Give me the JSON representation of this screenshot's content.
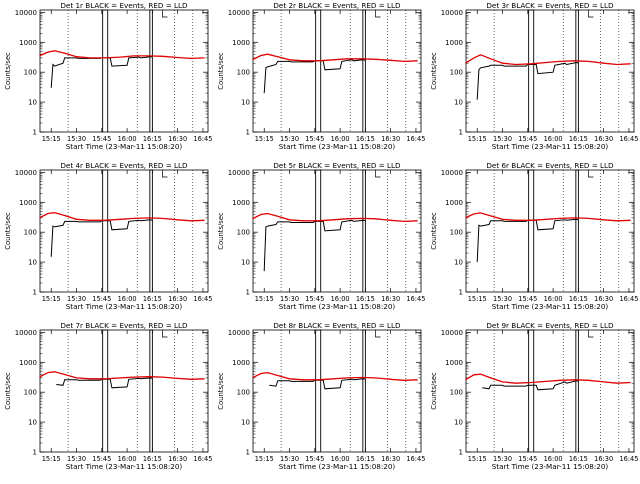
{
  "colors": {
    "events": "#000000",
    "lld": "#e00000",
    "axes": "#000000",
    "background": "#ffffff"
  },
  "chart_data": [
    {
      "type": "line",
      "title": "Det 1r BLACK = Events, RED = LLD",
      "xlabel": "Start Time (23-Mar-11 15:08:20)",
      "ylabel": "Counts/sec",
      "x_ticks": [
        "15:15",
        "15:30",
        "15:45",
        "16:00",
        "16:15",
        "16:30",
        "16:45"
      ],
      "y_ticks": [
        "1",
        "10",
        "100",
        "1000",
        "10000"
      ],
      "yscale": "log",
      "ylim": [
        1,
        12000
      ],
      "series": [
        {
          "color": "#000000",
          "x": [
            "15:15",
            "15:16",
            "15:17",
            "15:22",
            "15:23",
            "15:30",
            "15:31",
            "15:44",
            "15:45",
            "15:50",
            "15:51",
            "16:00",
            "16:01",
            "16:07",
            "16:08",
            "16:14",
            "16:15"
          ],
          "values": [
            30,
            180,
            160,
            200,
            300,
            300,
            290,
            290,
            300,
            300,
            160,
            170,
            300,
            320,
            300,
            330,
            320
          ]
        },
        {
          "color": "#e00000",
          "x": [
            "15:08",
            "15:13",
            "15:17",
            "15:23",
            "15:30",
            "15:38",
            "15:47",
            "15:56",
            "16:04",
            "16:13",
            "16:21",
            "16:30",
            "16:38",
            "16:46"
          ],
          "values": [
            350,
            470,
            520,
            430,
            330,
            300,
            300,
            320,
            350,
            350,
            340,
            310,
            290,
            300
          ]
        }
      ]
    },
    {
      "type": "line",
      "title": "Det 2r BLACK = Events, RED = LLD",
      "xlabel": "Start Time (23-Mar-11 15:08:20)",
      "ylabel": "Counts/sec",
      "x_ticks": [
        "15:15",
        "15:30",
        "15:45",
        "16:00",
        "16:15",
        "16:30",
        "16:45"
      ],
      "y_ticks": [
        "1",
        "10",
        "100",
        "1000",
        "10000"
      ],
      "yscale": "log",
      "ylim": [
        1,
        12000
      ],
      "series": [
        {
          "color": "#000000",
          "x": [
            "15:15",
            "15:16",
            "15:17",
            "15:22",
            "15:23",
            "15:30",
            "15:31",
            "15:44",
            "15:45",
            "15:50",
            "15:51",
            "16:00",
            "16:01",
            "16:07",
            "16:08",
            "16:14",
            "16:15"
          ],
          "values": [
            20,
            140,
            150,
            180,
            230,
            230,
            220,
            220,
            240,
            240,
            120,
            130,
            230,
            260,
            240,
            260,
            250
          ]
        },
        {
          "color": "#e00000",
          "x": [
            "15:08",
            "15:13",
            "15:17",
            "15:23",
            "15:30",
            "15:38",
            "15:47",
            "15:56",
            "16:04",
            "16:13",
            "16:21",
            "16:30",
            "16:38",
            "16:46"
          ],
          "values": [
            260,
            360,
            400,
            330,
            260,
            240,
            240,
            260,
            280,
            280,
            270,
            250,
            230,
            240
          ]
        }
      ]
    },
    {
      "type": "line",
      "title": "Det 3r BLACK = Events, RED = LLD",
      "xlabel": "Start Time (23-Mar-11 15:08:20)",
      "ylabel": "Counts/sec",
      "x_ticks": [
        "15:15",
        "15:30",
        "15:45",
        "16:00",
        "16:15",
        "16:30",
        "16:45"
      ],
      "y_ticks": [
        "1",
        "10",
        "100",
        "1000",
        "10000"
      ],
      "yscale": "log",
      "ylim": [
        1,
        12000
      ],
      "series": [
        {
          "color": "#000000",
          "x": [
            "15:15",
            "15:16",
            "15:17",
            "15:22",
            "15:23",
            "15:30",
            "15:31",
            "15:44",
            "15:45",
            "15:50",
            "15:51",
            "16:00",
            "16:01",
            "16:07",
            "16:08",
            "16:14",
            "16:15"
          ],
          "values": [
            12,
            120,
            140,
            160,
            170,
            170,
            160,
            160,
            180,
            180,
            90,
            100,
            170,
            200,
            180,
            210,
            200
          ]
        },
        {
          "color": "#e00000",
          "x": [
            "15:08",
            "15:13",
            "15:17",
            "15:23",
            "15:30",
            "15:38",
            "15:47",
            "15:56",
            "16:04",
            "16:13",
            "16:21",
            "16:30",
            "16:38",
            "16:46"
          ],
          "values": [
            200,
            300,
            380,
            280,
            200,
            180,
            190,
            210,
            230,
            240,
            230,
            200,
            180,
            190
          ]
        }
      ]
    },
    {
      "type": "line",
      "title": "Det 4r BLACK = Events, RED = LLD",
      "xlabel": "Start Time (23-Mar-11 15:08:20)",
      "ylabel": "Counts/sec",
      "x_ticks": [
        "15:15",
        "15:30",
        "15:45",
        "16:00",
        "16:15",
        "16:30",
        "16:45"
      ],
      "y_ticks": [
        "1",
        "10",
        "100",
        "1000",
        "10000"
      ],
      "yscale": "log",
      "ylim": [
        1,
        12000
      ],
      "series": [
        {
          "color": "#000000",
          "x": [
            "15:15",
            "15:16",
            "15:17",
            "15:22",
            "15:23",
            "15:30",
            "15:31",
            "15:44",
            "15:45",
            "15:50",
            "15:51",
            "16:00",
            "16:01",
            "16:07",
            "16:08",
            "16:14",
            "16:15"
          ],
          "values": [
            15,
            160,
            150,
            170,
            230,
            230,
            220,
            220,
            240,
            240,
            120,
            130,
            230,
            250,
            240,
            260,
            250
          ]
        },
        {
          "color": "#e00000",
          "x": [
            "15:08",
            "15:13",
            "15:17",
            "15:23",
            "15:30",
            "15:38",
            "15:47",
            "15:56",
            "16:04",
            "16:13",
            "16:21",
            "16:30",
            "16:38",
            "16:46"
          ],
          "values": [
            300,
            420,
            450,
            360,
            270,
            250,
            250,
            270,
            290,
            300,
            290,
            260,
            240,
            250
          ]
        }
      ]
    },
    {
      "type": "line",
      "title": "Det 5r BLACK = Events, RED = LLD",
      "xlabel": "Start Time (23-Mar-11 15:08:20)",
      "ylabel": "Counts/sec",
      "x_ticks": [
        "15:15",
        "15:30",
        "15:45",
        "16:00",
        "16:15",
        "16:30",
        "16:45"
      ],
      "y_ticks": [
        "1",
        "10",
        "100",
        "1000",
        "10000"
      ],
      "yscale": "log",
      "ylim": [
        1,
        12000
      ],
      "series": [
        {
          "color": "#000000",
          "x": [
            "15:15",
            "15:16",
            "15:17",
            "15:22",
            "15:23",
            "15:30",
            "15:31",
            "15:44",
            "15:45",
            "15:50",
            "15:51",
            "16:00",
            "16:01",
            "16:07",
            "16:08",
            "16:14",
            "16:15"
          ],
          "values": [
            5,
            150,
            160,
            180,
            220,
            220,
            210,
            210,
            230,
            230,
            110,
            120,
            220,
            250,
            230,
            250,
            240
          ]
        },
        {
          "color": "#e00000",
          "x": [
            "15:08",
            "15:13",
            "15:17",
            "15:23",
            "15:30",
            "15:38",
            "15:47",
            "15:56",
            "16:04",
            "16:13",
            "16:21",
            "16:30",
            "16:38",
            "16:46"
          ],
          "values": [
            280,
            390,
            420,
            340,
            260,
            240,
            240,
            260,
            280,
            290,
            280,
            250,
            230,
            240
          ]
        }
      ]
    },
    {
      "type": "line",
      "title": "Det 6r BLACK = Events, RED = LLD",
      "xlabel": "Start Time (23-Mar-11 15:08:20)",
      "ylabel": "Counts/sec",
      "x_ticks": [
        "15:15",
        "15:30",
        "15:45",
        "16:00",
        "16:15",
        "16:30",
        "16:45"
      ],
      "y_ticks": [
        "1",
        "10",
        "100",
        "1000",
        "10000"
      ],
      "yscale": "log",
      "ylim": [
        1,
        12000
      ],
      "series": [
        {
          "color": "#000000",
          "x": [
            "15:15",
            "15:16",
            "15:17",
            "15:22",
            "15:23",
            "15:30",
            "15:31",
            "15:44",
            "15:45",
            "15:50",
            "15:51",
            "16:00",
            "16:01",
            "16:07",
            "16:08",
            "16:14",
            "16:15"
          ],
          "values": [
            10,
            170,
            160,
            180,
            240,
            240,
            230,
            230,
            250,
            250,
            120,
            130,
            240,
            260,
            250,
            270,
            260
          ]
        },
        {
          "color": "#e00000",
          "x": [
            "15:08",
            "15:13",
            "15:17",
            "15:23",
            "15:30",
            "15:38",
            "15:47",
            "15:56",
            "16:04",
            "16:13",
            "16:21",
            "16:30",
            "16:38",
            "16:46"
          ],
          "values": [
            300,
            410,
            440,
            350,
            270,
            250,
            250,
            270,
            290,
            300,
            290,
            260,
            240,
            250
          ]
        }
      ]
    },
    {
      "type": "line",
      "title": "Det 7r BLACK = Events, RED = LLD",
      "xlabel": "Start Time (23-Mar-11 15:08:20)",
      "ylabel": "Counts/sec",
      "x_ticks": [
        "15:15",
        "15:30",
        "15:45",
        "16:00",
        "16:15",
        "16:30",
        "16:45"
      ],
      "y_ticks": [
        "1",
        "10",
        "100",
        "1000",
        "10000"
      ],
      "yscale": "log",
      "ylim": [
        1,
        12000
      ],
      "series": [
        {
          "color": "#000000",
          "x": [
            "15:18",
            "15:22",
            "15:23",
            "15:30",
            "15:31",
            "15:44",
            "15:45",
            "15:50",
            "15:51",
            "16:00",
            "16:01",
            "16:07",
            "16:08",
            "16:14",
            "16:15"
          ],
          "values": [
            180,
            170,
            260,
            260,
            250,
            250,
            270,
            270,
            140,
            150,
            270,
            290,
            280,
            300,
            290
          ]
        },
        {
          "color": "#e00000",
          "x": [
            "15:08",
            "15:13",
            "15:17",
            "15:23",
            "15:30",
            "15:38",
            "15:47",
            "15:56",
            "16:04",
            "16:13",
            "16:21",
            "16:30",
            "16:38",
            "16:46"
          ],
          "values": [
            320,
            450,
            480,
            390,
            300,
            280,
            280,
            300,
            320,
            330,
            320,
            290,
            270,
            280
          ]
        }
      ]
    },
    {
      "type": "line",
      "title": "Det 8r BLACK = Events, RED = LLD",
      "xlabel": "Start Time (23-Mar-11 15:08:20)",
      "ylabel": "Counts/sec",
      "x_ticks": [
        "15:15",
        "15:30",
        "15:45",
        "16:00",
        "16:15",
        "16:30",
        "16:45"
      ],
      "y_ticks": [
        "1",
        "10",
        "100",
        "1000",
        "10000"
      ],
      "yscale": "log",
      "ylim": [
        1,
        12000
      ],
      "series": [
        {
          "color": "#000000",
          "x": [
            "15:18",
            "15:22",
            "15:23",
            "15:30",
            "15:31",
            "15:44",
            "15:45",
            "15:50",
            "15:51",
            "16:00",
            "16:01",
            "16:07",
            "16:08",
            "16:14",
            "16:15"
          ],
          "values": [
            170,
            160,
            240,
            240,
            230,
            230,
            250,
            250,
            130,
            140,
            250,
            270,
            260,
            280,
            270
          ]
        },
        {
          "color": "#e00000",
          "x": [
            "15:08",
            "15:13",
            "15:17",
            "15:23",
            "15:30",
            "15:38",
            "15:47",
            "15:56",
            "16:04",
            "16:13",
            "16:21",
            "16:30",
            "16:38",
            "16:46"
          ],
          "values": [
            300,
            420,
            450,
            360,
            280,
            260,
            260,
            280,
            300,
            310,
            300,
            270,
            250,
            260
          ]
        }
      ]
    },
    {
      "type": "line",
      "title": "Det 9r BLACK = Events, RED = LLD",
      "xlabel": "Start Time (23-Mar-11 15:08:20)",
      "ylabel": "Counts/sec",
      "x_ticks": [
        "15:15",
        "15:30",
        "15:45",
        "16:00",
        "16:15",
        "16:30",
        "16:45"
      ],
      "y_ticks": [
        "1",
        "10",
        "100",
        "1000",
        "10000"
      ],
      "yscale": "log",
      "ylim": [
        1,
        12000
      ],
      "series": [
        {
          "color": "#000000",
          "x": [
            "15:18",
            "15:22",
            "15:23",
            "15:30",
            "15:31",
            "15:44",
            "15:45",
            "15:50",
            "15:51",
            "16:00",
            "16:01",
            "16:07",
            "16:08",
            "16:14",
            "16:15"
          ],
          "values": [
            140,
            130,
            170,
            170,
            160,
            160,
            170,
            170,
            120,
            130,
            170,
            220,
            200,
            240,
            230
          ]
        },
        {
          "color": "#e00000",
          "x": [
            "15:08",
            "15:13",
            "15:17",
            "15:23",
            "15:30",
            "15:38",
            "15:47",
            "15:56",
            "16:04",
            "16:13",
            "16:21",
            "16:30",
            "16:38",
            "16:46"
          ],
          "values": [
            260,
            380,
            400,
            300,
            220,
            200,
            210,
            230,
            250,
            260,
            250,
            220,
            200,
            210
          ]
        }
      ]
    }
  ]
}
